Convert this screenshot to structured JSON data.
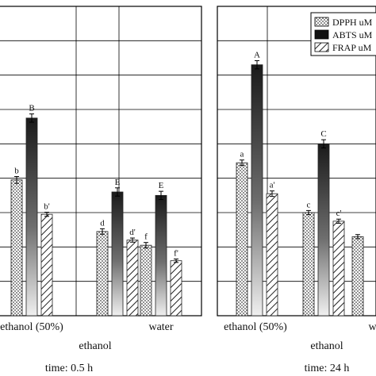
{
  "chart_data": [
    {
      "type": "bar",
      "xlabel": "time: 0.5 h",
      "category_labels": [
        "ethanol (50%)",
        "ethanol",
        "water"
      ],
      "categories": [
        "ethanol (50%)",
        "ethanol",
        "water"
      ],
      "ylim": [
        0,
        9
      ],
      "grid": true,
      "series": [
        {
          "values": [
            3.95,
            2.45,
            2.05
          ],
          "errors": [
            0.1,
            0.08,
            0.08
          ],
          "letters": [
            "b",
            "d",
            "f"
          ]
        },
        {
          "values": [
            5.75,
            3.6,
            3.5
          ],
          "errors": [
            0.12,
            0.12,
            0.12
          ],
          "letters": [
            "B",
            "E",
            "E"
          ]
        },
        {
          "values": [
            2.95,
            2.2,
            1.6
          ],
          "errors": [
            0.06,
            0.06,
            0.05
          ],
          "letters": [
            "b'",
            "d'",
            "f'"
          ]
        }
      ]
    },
    {
      "type": "bar",
      "xlabel": "time: 24 h",
      "category_labels": [
        "ethanol (50%)",
        "ethanol",
        "water"
      ],
      "categories": [
        "ethanol (50%)",
        "ethanol",
        "water"
      ],
      "ylim": [
        0,
        9
      ],
      "grid": true,
      "legend_position": "top-right",
      "series": [
        {
          "name": "DPPH uM",
          "pattern": "dots",
          "values": [
            4.45,
            3.0,
            2.3
          ],
          "errors": [
            0.08,
            0.06,
            0.06
          ],
          "letters": [
            "a",
            "c",
            ""
          ]
        },
        {
          "name": "ABTS uM",
          "pattern": "gradient",
          "values": [
            7.3,
            5.0,
            null
          ],
          "errors": [
            0.12,
            0.12,
            0
          ],
          "letters": [
            "A",
            "C",
            ""
          ]
        },
        {
          "name": "FRAP uM",
          "pattern": "hatch",
          "values": [
            3.55,
            2.75,
            null
          ],
          "errors": [
            0.08,
            0.06,
            0
          ],
          "letters": [
            "a'",
            "c'",
            ""
          ]
        }
      ]
    }
  ]
}
